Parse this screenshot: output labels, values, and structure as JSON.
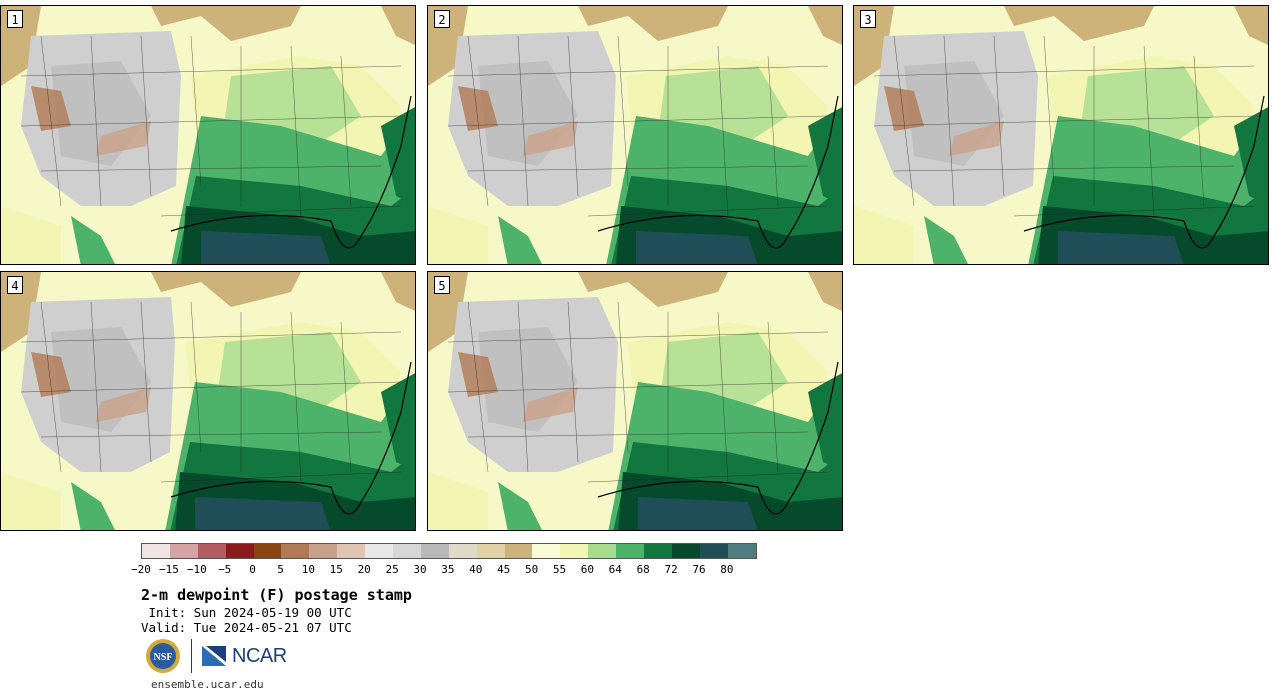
{
  "title": "2-m dewpoint (F) postage stamp",
  "init_label": " Init: Sun 2024-05-19 00 UTC",
  "valid_label": "Valid: Tue 2024-05-21 07 UTC",
  "site": "ensemble.ucar.edu",
  "logos": {
    "nsf_text": "NSF",
    "ncar_text": "NCAR"
  },
  "members": [
    "1",
    "2",
    "3",
    "4",
    "5"
  ],
  "colorbar": {
    "ticks": [
      "−20",
      "−15",
      "−10",
      "−5",
      "0",
      "5",
      "10",
      "15",
      "20",
      "25",
      "30",
      "35",
      "40",
      "45",
      "50",
      "55",
      "60",
      "64",
      "68",
      "72",
      "76",
      "80"
    ],
    "colors": [
      "#f1e4e4",
      "#d3a3a5",
      "#b15c61",
      "#8b1a1a",
      "#8b4513",
      "#b07a55",
      "#c9a08a",
      "#dfc4b4",
      "#e7e7e7",
      "#d7d7d7",
      "#b9b9b9",
      "#e0dbc8",
      "#e4d2a7",
      "#cdb27a",
      "#fafbd7",
      "#f3f6b2",
      "#a7dc8e",
      "#4db36b",
      "#12763f",
      "#054a2b",
      "#1f4e58",
      "#4f7d80"
    ]
  }
}
